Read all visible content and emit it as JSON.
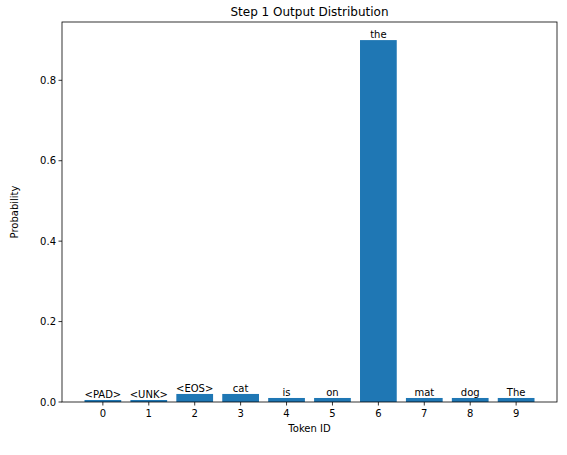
{
  "chart_data": {
    "type": "bar",
    "title": "Step 1 Output Distribution",
    "x_label": "Token ID",
    "y_label": "Probability",
    "categories": [
      "0",
      "1",
      "2",
      "3",
      "4",
      "5",
      "6",
      "7",
      "8",
      "9"
    ],
    "values": [
      0.005,
      0.005,
      0.02,
      0.02,
      0.01,
      0.01,
      0.9,
      0.01,
      0.01,
      0.01
    ],
    "annotations": [
      "<PAD>",
      "<UNK>",
      "<EOS>",
      "cat",
      "is",
      "on",
      "the",
      "mat",
      "dog",
      "The"
    ],
    "color": "#1f77b4",
    "ylim": [
      0,
      0.945
    ],
    "yticks": [
      {
        "value": 0,
        "label": "0.0"
      },
      0.2,
      0.4,
      0.6,
      0.8
    ],
    "grid": false
  }
}
